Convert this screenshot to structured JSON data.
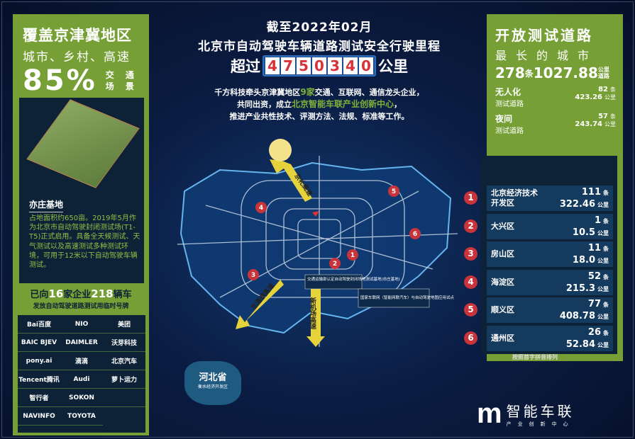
{
  "left": {
    "title": "覆盖京津冀地区",
    "subtitle": "城市、乡村、高速",
    "percent": "85%",
    "scene": "交 通 场 景",
    "base_title": "亦庄基地",
    "base_text": "占地面积约650亩。2019年5月作为北京市自动驾驶封闭测试场(T1-T5)正式启用。具备全天候测试、天气测试以及高速测试多种测试环境，可用于12米以下自动驾驶车辆测试。",
    "band_pre": "已向",
    "band_n1": "16",
    "band_mid": "家企业",
    "band_n2": "218",
    "band_post": "辆车",
    "band_sub": "发放自动驾驶道路测试用临时号牌",
    "logos": [
      "Bai百度",
      "NIO",
      "美团",
      "BAIC BJEV",
      "DAIMLER",
      "沃芽科技",
      "pony.ai",
      "滴滴",
      "北京汽车",
      "Tencent腾讯",
      "Audi",
      "萝卜运力",
      "智行者",
      "SOKON",
      "NAVINFO",
      "TOYOTA"
    ]
  },
  "center": {
    "line1": "截至2022年02月",
    "line2": "北京市自动驾驶车辆道路测试安全行驶里程",
    "pre": "超过",
    "digits": [
      "4",
      "7",
      "5",
      "0",
      "3",
      "4",
      "0"
    ],
    "post": "公里",
    "intro": {
      "a": "千方科技牵头京津冀地区",
      "b": "9家",
      "c": "交通、互联网、通信龙头企业，",
      "d": "共同出资，成立",
      "e": "北京智能车联产业创新中心",
      "f": "，",
      "g": "推进产业共性技术、评测方法、法规、标准等工作。"
    }
  },
  "map": {
    "road_top": "京礼高速",
    "road_left": "京港澳高速",
    "road_bottom": "新机场高速",
    "callout1": "交通运输部认定自动驾驶封闭场地测试基地(亦庄基地)",
    "callout2": "国家车联网（智能网联汽车）与自动驾驶地图应用试点",
    "hebei": "河北省",
    "hebei_sub": "衡水经济开发区",
    "pins": [
      "1",
      "2",
      "3",
      "4",
      "5",
      "6"
    ],
    "accent": "#c9343b"
  },
  "right": {
    "title": "开放测试道路",
    "subtitle": "最长的城市",
    "roads": "278",
    "roads_unit": "条",
    "km": "1027.88",
    "km_unit": "公里道路",
    "unmanned": {
      "l1": "无人化",
      "l2": "测试道路",
      "count": "82",
      "km": "423.26"
    },
    "night": {
      "l1": "夜间",
      "l2": "测试道路",
      "count": "57",
      "km": "243.74"
    },
    "unit_count": "条",
    "unit_km": "公里",
    "districts": [
      {
        "n": "1",
        "name": "北京经济技术开发区",
        "count": "111",
        "km": "322.46"
      },
      {
        "n": "2",
        "name": "大兴区",
        "count": "1",
        "km": "10.5"
      },
      {
        "n": "3",
        "name": "房山区",
        "count": "11",
        "km": "18.0"
      },
      {
        "n": "4",
        "name": "海淀区",
        "count": "52",
        "km": "215.3"
      },
      {
        "n": "5",
        "name": "顺义区",
        "count": "77",
        "km": "408.78"
      },
      {
        "n": "6",
        "name": "通州区",
        "count": "26",
        "km": "52.84"
      }
    ],
    "note": "按照首字拼音排列"
  },
  "brand": {
    "name": "智能车联",
    "sub": "产业创新中心"
  },
  "colors": {
    "green": "#76a036",
    "navy": "#0d2236",
    "red": "#d8333a"
  }
}
